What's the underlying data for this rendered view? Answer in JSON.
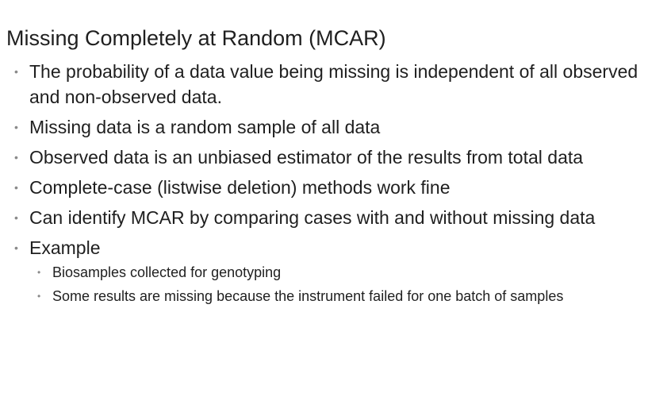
{
  "slide": {
    "title": "Missing Completely  at Random  (MCAR)",
    "bullet_symbol": "•",
    "bullets": [
      "The probability of a data value being missing is independent of all observed and non-observed data.",
      "Missing data is a random sample of all data",
      "Observed data is an unbiased estimator of the results from total data",
      "Complete-case (listwise deletion) methods work fine",
      "Can identify MCAR by comparing cases with and without missing data",
      "Example"
    ],
    "sub_bullets": [
      "Biosamples  collected  for genotyping",
      "Some results are missing because the instrument failed for one batch of samples"
    ]
  }
}
